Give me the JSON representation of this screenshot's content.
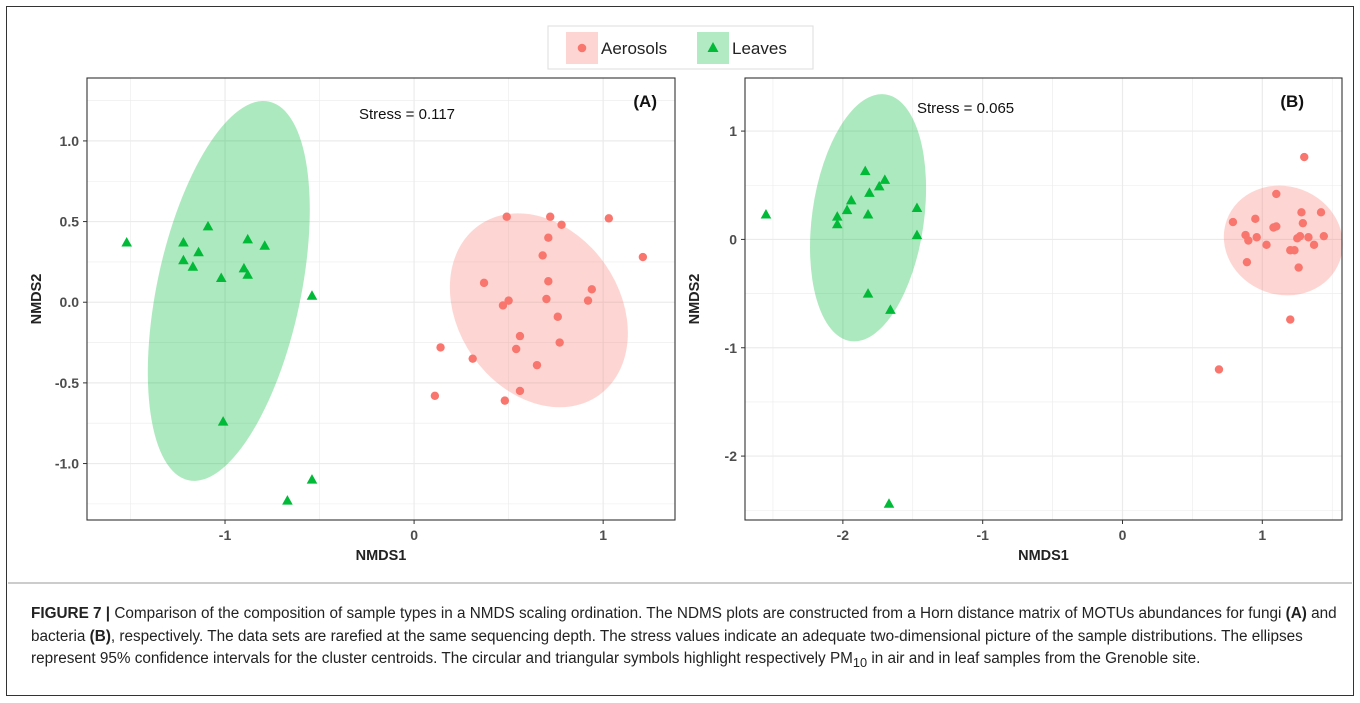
{
  "colors": {
    "aerosols": "#F8766D",
    "leaves": "#00BA38",
    "aerosols_ellipse": "#F8766D",
    "leaves_ellipse": "#00BA38",
    "grid": "#EBEBEB",
    "caption_rule": "#E8262A"
  },
  "legend": {
    "items": [
      {
        "label": "Aerosols",
        "marker": "circle",
        "color": "#F8766D"
      },
      {
        "label": "Leaves",
        "marker": "triangle",
        "color": "#00BA38"
      }
    ]
  },
  "chart_data": [
    {
      "type": "scatter",
      "panel_label": "(A)",
      "annotation": "Stress = 0.117",
      "xlabel": "NMDS1",
      "ylabel": "NMDS2",
      "xlim": [
        -1.73,
        1.38
      ],
      "ylim": [
        -1.35,
        1.39
      ],
      "x_ticks": [
        -1,
        0,
        1
      ],
      "x_tick_labels": [
        "-1",
        "0",
        "1"
      ],
      "y_ticks": [
        -1.0,
        -0.5,
        0.0,
        0.5,
        1.0
      ],
      "y_tick_labels": [
        "-1.0",
        "-0.5",
        "0.0",
        "0.5",
        "1.0"
      ],
      "grid": true,
      "ellipses": [
        {
          "group": "Leaves",
          "cx": -0.98,
          "cy": 0.07,
          "rx": 0.38,
          "ry": 1.2,
          "angle_deg": 12
        },
        {
          "group": "Aerosols",
          "cx": 0.66,
          "cy": -0.05,
          "rx": 0.55,
          "ry": 0.5,
          "angle_deg": 55
        }
      ],
      "series": [
        {
          "name": "Aerosols",
          "marker": "circle",
          "points": [
            [
              0.49,
              0.53
            ],
            [
              0.72,
              0.53
            ],
            [
              0.78,
              0.48
            ],
            [
              1.03,
              0.52
            ],
            [
              1.21,
              0.28
            ],
            [
              0.71,
              0.4
            ],
            [
              0.68,
              0.29
            ],
            [
              0.37,
              0.12
            ],
            [
              0.71,
              0.13
            ],
            [
              0.94,
              0.08
            ],
            [
              0.5,
              0.01
            ],
            [
              0.47,
              -0.02
            ],
            [
              0.7,
              0.02
            ],
            [
              0.92,
              0.01
            ],
            [
              0.76,
              -0.09
            ],
            [
              0.56,
              -0.21
            ],
            [
              0.14,
              -0.28
            ],
            [
              0.77,
              -0.25
            ],
            [
              0.54,
              -0.29
            ],
            [
              0.31,
              -0.35
            ],
            [
              0.65,
              -0.39
            ],
            [
              0.56,
              -0.55
            ],
            [
              0.11,
              -0.58
            ],
            [
              0.48,
              -0.61
            ]
          ]
        },
        {
          "name": "Leaves",
          "marker": "triangle",
          "points": [
            [
              -1.52,
              0.37
            ],
            [
              -1.22,
              0.37
            ],
            [
              -1.09,
              0.47
            ],
            [
              -0.88,
              0.39
            ],
            [
              -0.79,
              0.35
            ],
            [
              -1.22,
              0.26
            ],
            [
              -1.14,
              0.31
            ],
            [
              -1.17,
              0.22
            ],
            [
              -0.9,
              0.21
            ],
            [
              -0.88,
              0.17
            ],
            [
              -1.02,
              0.15
            ],
            [
              -0.54,
              0.04
            ],
            [
              -1.01,
              -0.74
            ],
            [
              -0.54,
              -1.1
            ],
            [
              -0.67,
              -1.23
            ]
          ]
        }
      ]
    },
    {
      "type": "scatter",
      "panel_label": "(B)",
      "annotation": "Stress = 0.065",
      "xlabel": "NMDS1",
      "ylabel": "NMDS2",
      "xlim": [
        -2.7,
        1.57
      ],
      "ylim": [
        -2.59,
        1.49
      ],
      "x_ticks": [
        -2,
        -1,
        0,
        1
      ],
      "x_tick_labels": [
        "-2",
        "-1",
        "0",
        "1"
      ],
      "y_ticks": [
        -2,
        -1,
        0,
        1
      ],
      "y_tick_labels": [
        "-2",
        "-1",
        "0",
        "1"
      ],
      "grid": true,
      "ellipses": [
        {
          "group": "Leaves",
          "cx": -1.82,
          "cy": 0.2,
          "rx": 0.4,
          "ry": 1.15,
          "angle_deg": 8
        },
        {
          "group": "Aerosols",
          "cx": 1.15,
          "cy": -0.01,
          "rx": 0.43,
          "ry": 0.5,
          "angle_deg": 20
        }
      ],
      "series": [
        {
          "name": "Aerosols",
          "marker": "circle",
          "points": [
            [
              1.3,
              0.76
            ],
            [
              1.1,
              0.42
            ],
            [
              1.42,
              0.25
            ],
            [
              1.28,
              0.25
            ],
            [
              0.95,
              0.19
            ],
            [
              0.79,
              0.16
            ],
            [
              1.29,
              0.15
            ],
            [
              1.1,
              0.12
            ],
            [
              1.08,
              0.11
            ],
            [
              0.88,
              0.04
            ],
            [
              0.96,
              0.02
            ],
            [
              1.27,
              0.03
            ],
            [
              1.33,
              0.02
            ],
            [
              1.44,
              0.03
            ],
            [
              1.25,
              0.01
            ],
            [
              0.9,
              -0.01
            ],
            [
              1.03,
              -0.05
            ],
            [
              1.37,
              -0.05
            ],
            [
              1.2,
              -0.1
            ],
            [
              1.23,
              -0.1
            ],
            [
              0.89,
              -0.21
            ],
            [
              1.26,
              -0.26
            ],
            [
              1.2,
              -0.74
            ],
            [
              0.69,
              -1.2
            ]
          ]
        },
        {
          "name": "Leaves",
          "marker": "triangle",
          "points": [
            [
              -1.84,
              0.63
            ],
            [
              -1.7,
              0.55
            ],
            [
              -1.74,
              0.49
            ],
            [
              -1.81,
              0.43
            ],
            [
              -1.94,
              0.36
            ],
            [
              -1.47,
              0.29
            ],
            [
              -1.97,
              0.27
            ],
            [
              -2.55,
              0.23
            ],
            [
              -1.82,
              0.23
            ],
            [
              -2.04,
              0.21
            ],
            [
              -2.04,
              0.14
            ],
            [
              -1.47,
              0.04
            ],
            [
              -1.82,
              -0.5
            ],
            [
              -1.66,
              -0.65
            ],
            [
              -1.67,
              -2.44
            ]
          ]
        }
      ]
    }
  ],
  "caption": {
    "label": "FIGURE 7 |",
    "text": " Comparison of the composition of sample types in a NMDS scaling ordination. The NDMS plots are constructed from a Horn distance matrix of MOTUs abundances for fungi ",
    "ref_a": "(A)",
    "mid": " and bacteria ",
    "ref_b": "(B)",
    "text2": ", respectively. The data sets are rarefied at the same sequencing depth. The stress values indicate an adequate two-dimensional picture of the sample distributions. The ellipses represent 95% confidence intervals for the cluster centroids. The circular and triangular symbols highlight respectively PM",
    "pm_sub": "10",
    "text3": " in air and in leaf samples from the Grenoble site."
  }
}
